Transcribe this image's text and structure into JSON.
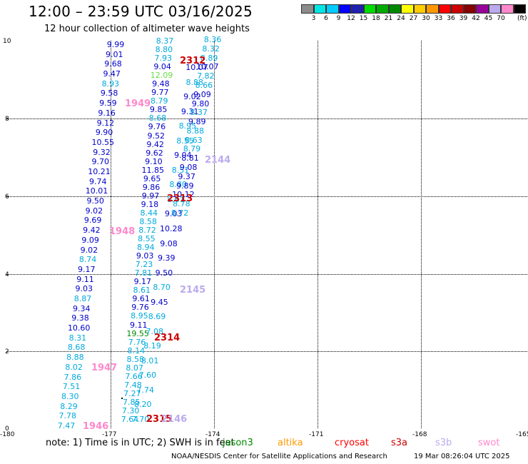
{
  "title": "12:00 – 23:59 UTC 03/16/2025",
  "subtitle": "12 hour collection of altimeter wave heights",
  "colorbar": {
    "colors": [
      "#8c8c8c",
      "#00e6e6",
      "#00ccff",
      "#0000ff",
      "#2020b0",
      "#00dd00",
      "#00aa00",
      "#008800",
      "#ffff00",
      "#ffcc00",
      "#ff9900",
      "#ff0000",
      "#cc0000",
      "#880000",
      "#990099",
      "#bbaaee",
      "#ff88cc",
      "#000000"
    ],
    "labels": [
      "3",
      "6",
      "9",
      "12",
      "15",
      "18",
      "21",
      "24",
      "27",
      "30",
      "33",
      "36",
      "39",
      "42",
      "45",
      "70"
    ],
    "unit": "(ft)"
  },
  "axes": {
    "y_ticks": [
      "10",
      "8",
      "6",
      "4",
      "2",
      "0"
    ],
    "x_ticks": [
      "-180",
      "-177",
      "-174",
      "-171",
      "-168",
      "-165"
    ]
  },
  "passes": [
    {
      "label": "2312",
      "color": "#cc0000"
    },
    {
      "label": "1949",
      "color": "#ff88cc"
    },
    {
      "label": "2144",
      "color": "#bbaaee"
    },
    {
      "label": "2313",
      "color": "#cc0000"
    },
    {
      "label": "1948",
      "color": "#ff88cc"
    },
    {
      "label": "2145",
      "color": "#bbaaee"
    },
    {
      "label": "2314",
      "color": "#cc0000"
    },
    {
      "label": "1947",
      "color": "#ff88cc"
    },
    {
      "label": "2315",
      "color": "#cc0000"
    },
    {
      "label": "1946",
      "color": "#ff88cc"
    },
    {
      "label": "2146",
      "color": "#bbaaee"
    }
  ],
  "col1": [
    "9.99",
    "9.01",
    "9.68",
    "9.47",
    "8.93",
    "9.58",
    "9.59",
    "9.16",
    "9.12",
    "9.90",
    "10.55",
    "9.32",
    "9.70",
    "10.21",
    "9.74",
    "10.01",
    "9.50",
    "9.02",
    "9.69",
    "9.42",
    "9.09",
    "9.02",
    "8.74",
    "9.17",
    "9.11",
    "9.03",
    "8.87",
    "9.34",
    "9.38",
    "10.60",
    "8.31",
    "8.68",
    "8.88",
    "8.02",
    "7.86",
    "7.51",
    "8.30",
    "8.29",
    "7.78",
    "7.47"
  ],
  "col1_colors": [
    "#0000cc",
    "#0000cc",
    "#0000cc",
    "#0000cc",
    "#00aadd",
    "#0000cc",
    "#0000cc",
    "#0000cc",
    "#0000cc",
    "#0000cc",
    "#0000cc",
    "#0000cc",
    "#0000cc",
    "#0000cc",
    "#0000cc",
    "#0000cc",
    "#0000cc",
    "#0000cc",
    "#0000cc",
    "#0000cc",
    "#0000cc",
    "#0000cc",
    "#00aadd",
    "#0000cc",
    "#0000cc",
    "#0000cc",
    "#00aadd",
    "#0000cc",
    "#0000cc",
    "#0000cc",
    "#00aadd",
    "#00aadd",
    "#00aadd",
    "#00aadd",
    "#00aadd",
    "#00aadd",
    "#00aadd",
    "#00aadd",
    "#00aadd",
    "#00aadd"
  ],
  "col2": [
    "8.37",
    "8.80",
    "7.93",
    "9.04",
    "12.09",
    "9.48",
    "9.77",
    "8.79",
    "9.85",
    "8.68",
    "9.76",
    "9.52",
    "9.42",
    "9.62",
    "9.10",
    "11.85",
    "9.65",
    "9.86",
    "9.97",
    "9.18",
    "8.44",
    "8.58",
    "8.72",
    "8.55",
    "8.94",
    "9.03",
    "7.23",
    "7.81",
    "9.17",
    "8.61",
    "9.61",
    "9.76",
    "8.95",
    "9.11",
    "19.55",
    "7.76",
    "8.14",
    "8.58",
    "8.07",
    "7.66",
    "7.48",
    "7.27",
    "7.85",
    "7.30",
    "7.64"
  ],
  "col2_colors": [
    "#00aadd",
    "#00aadd",
    "#00aadd",
    "#0000cc",
    "#66dd44",
    "#0000cc",
    "#0000cc",
    "#00aadd",
    "#0000cc",
    "#00aadd",
    "#0000cc",
    "#0000cc",
    "#0000cc",
    "#0000cc",
    "#0000cc",
    "#0000cc",
    "#0000cc",
    "#0000cc",
    "#0000cc",
    "#0000cc",
    "#00aadd",
    "#00aadd",
    "#00aadd",
    "#00aadd",
    "#00aadd",
    "#0000cc",
    "#00aadd",
    "#00aadd",
    "#0000cc",
    "#00aadd",
    "#0000cc",
    "#0000cc",
    "#00aadd",
    "#0000cc",
    "#008800",
    "#00aadd",
    "#00aadd",
    "#00aadd",
    "#00aadd",
    "#00aadd",
    "#00aadd",
    "#00aadd",
    "#00aadd",
    "#00aadd",
    "#00aadd"
  ],
  "col3": [
    "10.07",
    "8.88",
    "9.02",
    "9.31",
    "8.95",
    "8.55",
    "9.04",
    "8.51",
    "8.80",
    "8.61",
    "9.03",
    "10.28",
    "9.08",
    "9.39",
    "9.50",
    "8.70",
    "9.45",
    "8.69",
    "7.08",
    "8.19",
    "8.01",
    "7.60",
    "7.74",
    "8.20",
    "7.70"
  ],
  "col3_colors": [
    "#0000cc",
    "#00aadd",
    "#0000cc",
    "#0000cc",
    "#00aadd",
    "#00aadd",
    "#0000cc",
    "#00aadd",
    "#00aadd",
    "#00aadd",
    "#0000cc",
    "#0000cc",
    "#0000cc",
    "#0000cc",
    "#0000cc",
    "#00aadd",
    "#0000cc",
    "#00aadd",
    "#00aadd",
    "#00aadd",
    "#00aadd",
    "#00aadd",
    "#00aadd",
    "#00aadd",
    "#00aadd"
  ],
  "col4": [
    "8.36",
    "8.32",
    "8.89",
    "10.07",
    "7.82",
    "8.66",
    "9.09",
    "9.80",
    "8.37",
    "9.89",
    "8.88",
    "8.63",
    "8.79",
    "8.81",
    "9.08",
    "9.37",
    "9.89",
    "10.12",
    "8.78",
    "8.72"
  ],
  "col4_colors": [
    "#00aadd",
    "#00aadd",
    "#00aadd",
    "#0000cc",
    "#00aadd",
    "#00aadd",
    "#0000cc",
    "#0000cc",
    "#00aadd",
    "#0000cc",
    "#00aadd",
    "#00aadd",
    "#00aadd",
    "#0000cc",
    "#0000cc",
    "#0000cc",
    "#0000cc",
    "#0000cc",
    "#00aadd",
    "#00aadd"
  ],
  "note": "note:  1) Time is in UTC; 2) SWH is in feet",
  "satellites": [
    {
      "name": "jason3",
      "color": "#008800"
    },
    {
      "name": "altika",
      "color": "#ff9900"
    },
    {
      "name": "cryosat",
      "color": "#ff0000"
    },
    {
      "name": "s3a",
      "color": "#cc0000"
    },
    {
      "name": "s3b",
      "color": "#bbaaee"
    },
    {
      "name": "swot",
      "color": "#ff88cc"
    }
  ],
  "footer": {
    "source": "NOAA/NESDIS Center for Satellite Applications and Research",
    "timestamp": "19 Mar 08:26:04 UTC 2025"
  }
}
